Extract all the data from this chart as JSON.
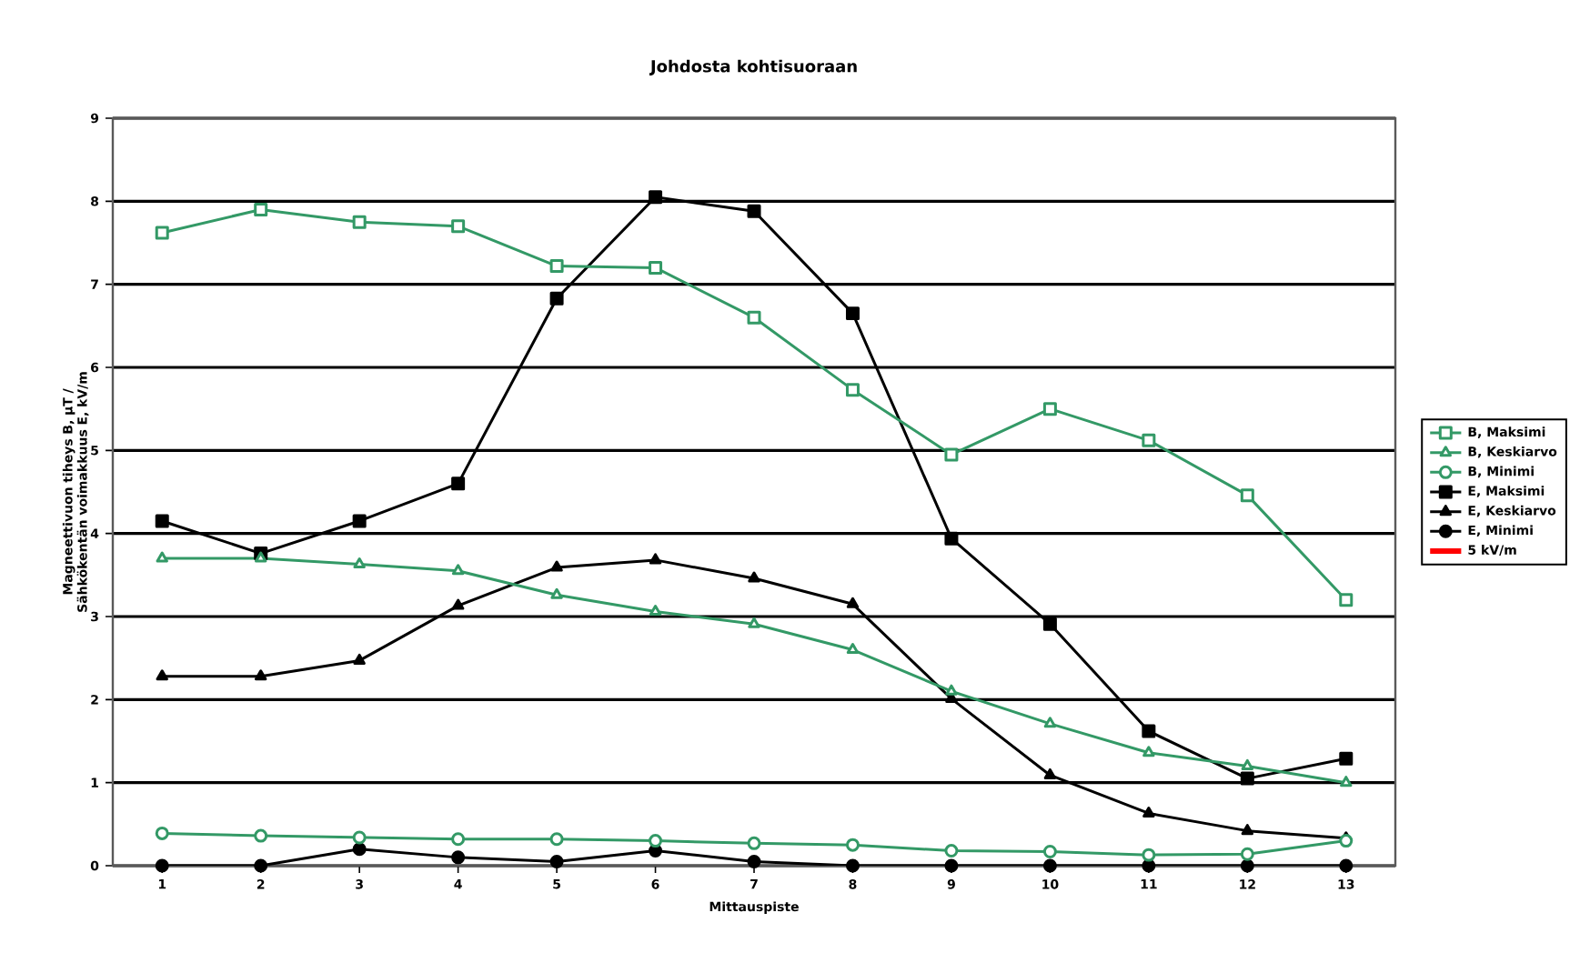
{
  "chart_data": {
    "type": "line",
    "title": "Johdosta kohtisuoraan",
    "xlabel": "Mittauspiste",
    "ylabel": "Magneettivuon tiheys B, µT / Sähkökentän voimakkuus E, kV/m",
    "categories": [
      "1",
      "2",
      "3",
      "4",
      "5",
      "6",
      "7",
      "8",
      "9",
      "10",
      "11",
      "12",
      "13"
    ],
    "ylim": [
      0,
      9
    ],
    "yticks": [
      0,
      1,
      2,
      3,
      4,
      5,
      6,
      7,
      8,
      9
    ],
    "grid": "y",
    "legend": "right",
    "line_style": "solid",
    "series": [
      {
        "name": "B, Maksimi",
        "color": "#339966",
        "marker": "square",
        "values": [
          7.62,
          7.9,
          7.75,
          7.7,
          7.22,
          7.2,
          6.6,
          5.73,
          4.95,
          5.5,
          5.12,
          4.46,
          3.2
        ]
      },
      {
        "name": "B, Keskiarvo",
        "color": "#339966",
        "marker": "triangle",
        "values": [
          3.7,
          3.7,
          3.63,
          3.55,
          3.26,
          3.06,
          2.91,
          2.6,
          2.1,
          1.71,
          1.36,
          1.2,
          1.0
        ]
      },
      {
        "name": "B, Minimi",
        "color": "#339966",
        "marker": "circle",
        "values": [
          0.39,
          0.36,
          0.34,
          0.32,
          0.32,
          0.3,
          0.27,
          0.25,
          0.18,
          0.17,
          0.13,
          0.14,
          0.3
        ]
      },
      {
        "name": "E, Maksimi",
        "color": "#000000",
        "marker": "square",
        "values": [
          4.15,
          3.76,
          4.15,
          4.6,
          6.83,
          8.05,
          7.88,
          6.65,
          3.94,
          2.91,
          1.62,
          1.05,
          1.29
        ]
      },
      {
        "name": "E, Keskiarvo",
        "color": "#000000",
        "marker": "triangle",
        "values": [
          2.28,
          2.28,
          2.47,
          3.13,
          3.59,
          3.68,
          3.46,
          3.15,
          2.01,
          1.09,
          0.63,
          0.42,
          0.33
        ]
      },
      {
        "name": "E, Minimi",
        "color": "#000000",
        "marker": "circle",
        "values": [
          0,
          0,
          0.2,
          0.1,
          0.05,
          0.18,
          0.05,
          0,
          0,
          0,
          0,
          0,
          0
        ]
      },
      {
        "name": "5 kV/m",
        "color": "#ff0000",
        "marker": "none",
        "values": [
          null,
          null,
          null,
          null,
          null,
          null,
          null,
          null,
          null,
          null,
          null,
          null,
          null
        ]
      }
    ]
  }
}
